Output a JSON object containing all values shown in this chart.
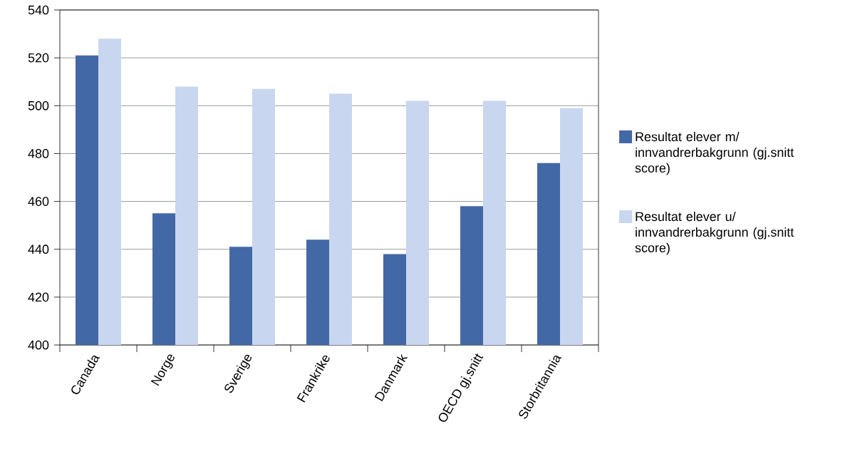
{
  "chart_data": {
    "type": "bar",
    "categories": [
      "Canada",
      "Norge",
      "Sverige",
      "Frankrike",
      "Danmark",
      "OECD gj.snitt",
      "Storbritannia"
    ],
    "series": [
      {
        "name": "Resultat elever m/ innvandrerbakgrunn (gj.snitt score)",
        "color": "#4368a6",
        "values": [
          521,
          455,
          441,
          444,
          438,
          458,
          476
        ]
      },
      {
        "name": "Resultat elever u/ innvandrerbakgrunn (gj.snitt score)",
        "color": "#c8d6ef",
        "values": [
          528,
          508,
          507,
          505,
          502,
          502,
          499
        ]
      }
    ],
    "ylim": [
      400,
      540
    ],
    "yticks": [
      400,
      420,
      440,
      460,
      480,
      500,
      520,
      540
    ],
    "grid": "y",
    "legend": "right"
  }
}
